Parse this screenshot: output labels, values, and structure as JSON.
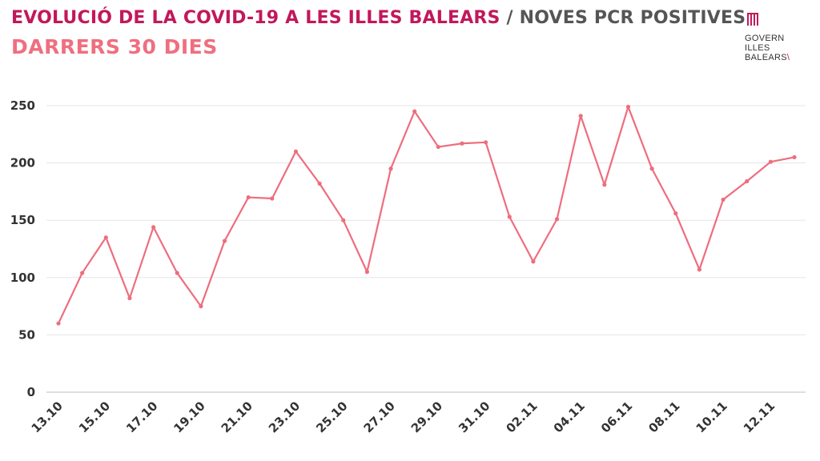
{
  "header": {
    "title_main": "EVOLUCIÓ DE LA COVID-19 A LES ILLES BALEARS",
    "title_sep": " / ",
    "title_sub": "NOVES PCR POSITIVES",
    "subtitle": "DARRERS 30 DIES"
  },
  "logo": {
    "line1": "GOVERN",
    "line2": "ILLES",
    "line3": "BALEARS",
    "icon": "govern-illes-balears-emblem"
  },
  "colors": {
    "title": "#c2185b",
    "title_secondary": "#555555",
    "subtitle": "#ef6f7f",
    "line": "#ee6d7e",
    "grid": "#e6e6e6",
    "axis": "#bdbdbd"
  },
  "chart_data": {
    "type": "line",
    "title": "EVOLUCIÓ DE LA COVID-19 A LES ILLES BALEARS / NOVES PCR POSITIVES",
    "subtitle": "DARRERS 30 DIES",
    "xlabel": "",
    "ylabel": "",
    "ylim": [
      0,
      250
    ],
    "yticks": [
      0,
      50,
      100,
      150,
      200,
      250
    ],
    "grid": true,
    "x": [
      "13.10",
      "14.10",
      "15.10",
      "16.10",
      "17.10",
      "18.10",
      "19.10",
      "20.10",
      "21.10",
      "22.10",
      "23.10",
      "24.10",
      "25.10",
      "26.10",
      "27.10",
      "28.10",
      "29.10",
      "30.10",
      "31.10",
      "01.11",
      "02.11",
      "03.11",
      "04.11",
      "05.11",
      "06.11",
      "07.11",
      "08.11",
      "09.11",
      "10.11",
      "11.11",
      "12.11",
      "13.11"
    ],
    "x_tick_labels": [
      "13.10",
      "15.10",
      "17.10",
      "19.10",
      "21.10",
      "23.10",
      "25.10",
      "27.10",
      "29.10",
      "31.10",
      "02.11",
      "04.11",
      "06.11",
      "08.11",
      "10.11",
      "12.11"
    ],
    "series": [
      {
        "values": [
          60,
          104,
          135,
          82,
          144,
          104,
          75,
          132,
          170,
          169,
          210,
          182,
          150,
          105,
          195,
          245,
          214,
          217,
          218,
          153,
          114,
          151,
          241,
          181,
          249,
          195,
          156,
          107,
          168,
          184,
          201,
          205
        ]
      }
    ]
  }
}
